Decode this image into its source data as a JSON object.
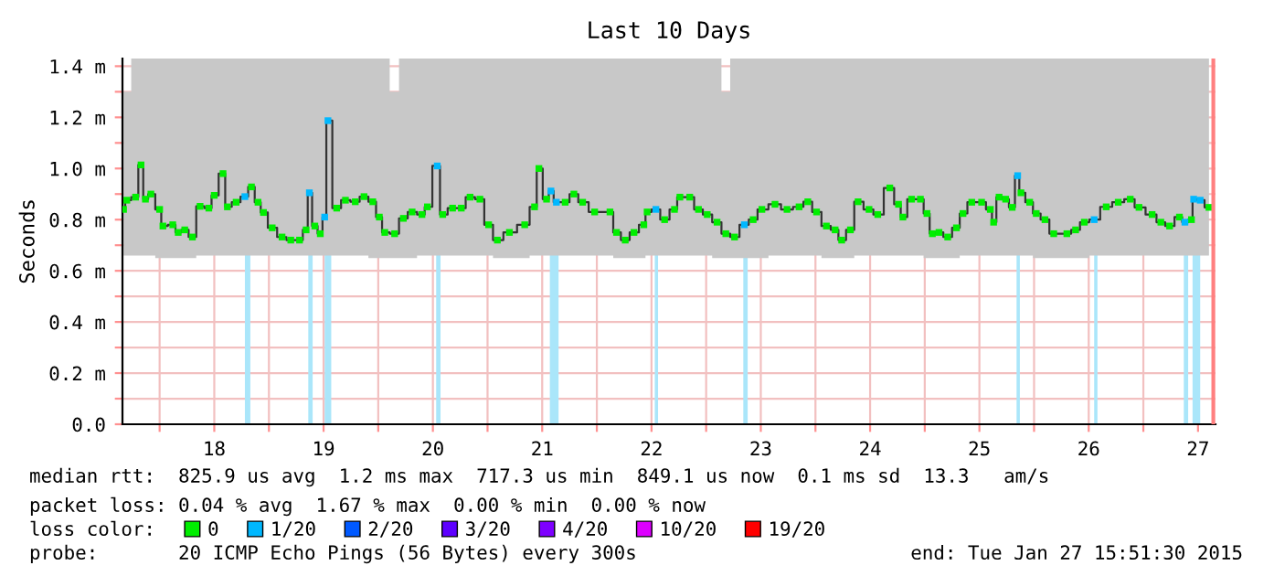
{
  "chart_data": {
    "type": "scatter",
    "title": "Last 10 Days",
    "ylabel": "Seconds",
    "legend_title": "loss color:",
    "xlim": [
      17.66,
      27.66
    ],
    "ylim": [
      0,
      1.43
    ],
    "xticks": [
      {
        "value": 18,
        "label": null
      },
      {
        "value": 18.5,
        "label": "18"
      },
      {
        "value": 19,
        "label": null
      },
      {
        "value": 19.5,
        "label": "19"
      },
      {
        "value": 20,
        "label": null
      },
      {
        "value": 20.5,
        "label": "20"
      },
      {
        "value": 21,
        "label": null
      },
      {
        "value": 21.5,
        "label": "21"
      },
      {
        "value": 22,
        "label": null
      },
      {
        "value": 22.5,
        "label": "22"
      },
      {
        "value": 23,
        "label": null
      },
      {
        "value": 23.5,
        "label": "23"
      },
      {
        "value": 24,
        "label": null
      },
      {
        "value": 24.5,
        "label": "24"
      },
      {
        "value": 25,
        "label": null
      },
      {
        "value": 25.5,
        "label": "25"
      },
      {
        "value": 26,
        "label": null
      },
      {
        "value": 26.5,
        "label": "26"
      },
      {
        "value": 27,
        "label": null
      },
      {
        "value": 27.5,
        "label": "27"
      }
    ],
    "yticks": [
      {
        "value": 0,
        "label": "0.0"
      },
      {
        "value": 0.1,
        "label": null
      },
      {
        "value": 0.2,
        "label": "0.2 m"
      },
      {
        "value": 0.3,
        "label": null
      },
      {
        "value": 0.4,
        "label": "0.4 m"
      },
      {
        "value": 0.5,
        "label": null
      },
      {
        "value": 0.6,
        "label": "0.6 m"
      },
      {
        "value": 0.7,
        "label": null
      },
      {
        "value": 0.8,
        "label": "0.8 m"
      },
      {
        "value": 0.9,
        "label": null
      },
      {
        "value": 1.0,
        "label": "1.0 m"
      },
      {
        "value": 1.1,
        "label": null
      },
      {
        "value": 1.2,
        "label": "1.2 m"
      },
      {
        "value": 1.3,
        "label": null
      },
      {
        "value": 1.4,
        "label": "1.4 m"
      }
    ],
    "grid": true,
    "legend": "bottom",
    "series": [
      {
        "type": "line",
        "color": "#333333",
        "marker": "none",
        "x": [
          17.67,
          17.7,
          17.78,
          17.83,
          17.87,
          17.92,
          18.0,
          18.03,
          18.12,
          18.17,
          18.23,
          18.3,
          18.37,
          18.45,
          18.5,
          18.58,
          18.62,
          18.7,
          18.78,
          18.84,
          18.9,
          18.95,
          19.03,
          19.12,
          19.2,
          19.28,
          19.34,
          19.37,
          19.42,
          19.47,
          19.51,
          19.54,
          19.62,
          19.7,
          19.79,
          19.87,
          19.95,
          20.01,
          20.06,
          20.15,
          20.23,
          20.31,
          20.4,
          20.45,
          20.54,
          20.59,
          20.68,
          20.76,
          20.84,
          20.93,
          21.01,
          21.09,
          21.2,
          21.34,
          21.43,
          21.47,
          21.54,
          21.58,
          21.63,
          21.71,
          21.79,
          21.87,
          21.98,
          22.12,
          22.18,
          22.26,
          22.34,
          22.43,
          22.46,
          22.54,
          22.62,
          22.71,
          22.76,
          22.85,
          22.93,
          23.01,
          23.1,
          23.18,
          23.26,
          23.35,
          23.43,
          23.51,
          23.63,
          23.74,
          23.85,
          23.93,
          24.01,
          24.1,
          24.18,
          24.24,
          24.32,
          24.39,
          24.49,
          24.57,
          24.68,
          24.76,
          24.8,
          24.88,
          24.96,
          25.02,
          25.07,
          25.13,
          25.21,
          25.29,
          25.35,
          25.43,
          25.52,
          25.6,
          25.63,
          25.68,
          25.74,
          25.8,
          25.85,
          25.88,
          25.96,
          26.02,
          26.1,
          26.18,
          26.3,
          26.38,
          26.46,
          26.55,
          26.66,
          26.77,
          26.88,
          26.96,
          27.08,
          27.16,
          27.24,
          27.33,
          27.38,
          27.44,
          27.46,
          27.52,
          27.6
        ],
        "values": [
          0.84,
          0.876,
          0.888,
          1.014,
          0.88,
          0.9,
          0.84,
          0.775,
          0.78,
          0.75,
          0.76,
          0.732,
          0.852,
          0.845,
          0.895,
          0.98,
          0.85,
          0.868,
          0.89,
          0.928,
          0.868,
          0.828,
          0.768,
          0.732,
          0.72,
          0.72,
          0.76,
          0.905,
          0.775,
          0.745,
          0.81,
          1.187,
          0.845,
          0.876,
          0.87,
          0.89,
          0.87,
          0.81,
          0.75,
          0.745,
          0.805,
          0.83,
          0.82,
          0.85,
          1.01,
          0.82,
          0.845,
          0.845,
          0.888,
          0.88,
          0.78,
          0.72,
          0.75,
          0.78,
          0.85,
          1.0,
          0.88,
          0.912,
          0.868,
          0.868,
          0.9,
          0.868,
          0.83,
          0.83,
          0.75,
          0.72,
          0.75,
          0.78,
          0.83,
          0.84,
          0.8,
          0.84,
          0.888,
          0.888,
          0.84,
          0.82,
          0.79,
          0.745,
          0.732,
          0.78,
          0.8,
          0.84,
          0.86,
          0.84,
          0.85,
          0.87,
          0.83,
          0.775,
          0.76,
          0.72,
          0.76,
          0.87,
          0.84,
          0.82,
          0.924,
          0.86,
          0.81,
          0.88,
          0.88,
          0.824,
          0.745,
          0.75,
          0.732,
          0.768,
          0.824,
          0.868,
          0.868,
          0.84,
          0.79,
          0.888,
          0.88,
          0.848,
          0.972,
          0.905,
          0.868,
          0.824,
          0.8,
          0.745,
          0.745,
          0.76,
          0.79,
          0.8,
          0.85,
          0.868,
          0.88,
          0.848,
          0.82,
          0.79,
          0.775,
          0.81,
          0.79,
          0.8,
          0.88,
          0.876,
          0.848
        ],
        "lower": [
          0.66,
          0.66,
          0.66,
          0.66,
          0.66,
          0.66,
          0.65,
          0.65,
          0.65,
          0.65,
          0.65,
          0.65,
          0.66,
          0.66,
          0.66,
          0.66,
          0.66,
          0.66,
          0.66,
          0.66,
          0.66,
          0.66,
          0.66,
          0.66,
          0.66,
          0.66,
          0.66,
          0.66,
          0.66,
          0.66,
          0.66,
          0.66,
          0.66,
          0.66,
          0.66,
          0.66,
          0.65,
          0.65,
          0.65,
          0.65,
          0.65,
          0.65,
          0.66,
          0.66,
          0.66,
          0.66,
          0.66,
          0.66,
          0.66,
          0.66,
          0.66,
          0.65,
          0.65,
          0.65,
          0.66,
          0.66,
          0.66,
          0.66,
          0.66,
          0.66,
          0.66,
          0.66,
          0.66,
          0.66,
          0.65,
          0.65,
          0.65,
          0.65,
          0.66,
          0.66,
          0.66,
          0.66,
          0.66,
          0.66,
          0.66,
          0.66,
          0.65,
          0.65,
          0.65,
          0.65,
          0.65,
          0.65,
          0.66,
          0.66,
          0.66,
          0.66,
          0.66,
          0.65,
          0.65,
          0.65,
          0.65,
          0.66,
          0.66,
          0.66,
          0.66,
          0.66,
          0.66,
          0.66,
          0.66,
          0.65,
          0.65,
          0.65,
          0.65,
          0.65,
          0.66,
          0.66,
          0.66,
          0.66,
          0.66,
          0.66,
          0.66,
          0.66,
          0.66,
          0.66,
          0.66,
          0.65,
          0.65,
          0.65,
          0.65,
          0.65,
          0.65,
          0.66,
          0.66,
          0.66,
          0.66,
          0.66,
          0.66,
          0.66,
          0.66,
          0.66,
          0.66,
          0.66,
          0.66,
          0.66,
          0.66
        ],
        "upper": [
          1.3,
          1.3,
          1.43,
          1.43,
          1.43,
          1.43,
          1.43,
          1.43,
          1.43,
          1.43,
          1.43,
          1.43,
          1.43,
          1.43,
          1.43,
          1.43,
          1.43,
          1.43,
          1.43,
          1.43,
          1.43,
          1.43,
          1.43,
          1.43,
          1.43,
          1.43,
          1.43,
          1.43,
          1.43,
          1.43,
          1.43,
          1.43,
          1.43,
          1.43,
          1.43,
          1.43,
          1.43,
          1.43,
          1.43,
          1.3,
          1.43,
          1.43,
          1.43,
          1.43,
          1.43,
          1.43,
          1.43,
          1.43,
          1.43,
          1.43,
          1.43,
          1.43,
          1.43,
          1.43,
          1.43,
          1.43,
          1.43,
          1.43,
          1.43,
          1.43,
          1.43,
          1.43,
          1.43,
          1.43,
          1.43,
          1.43,
          1.43,
          1.43,
          1.43,
          1.43,
          1.43,
          1.43,
          1.43,
          1.43,
          1.43,
          1.43,
          1.43,
          1.3,
          1.43,
          1.43,
          1.43,
          1.43,
          1.43,
          1.43,
          1.43,
          1.43,
          1.43,
          1.43,
          1.43,
          1.43,
          1.43,
          1.43,
          1.43,
          1.43,
          1.43,
          1.43,
          1.43,
          1.43,
          1.43,
          1.43,
          1.43,
          1.43,
          1.43,
          1.43,
          1.43,
          1.43,
          1.43,
          1.43,
          1.43,
          1.43,
          1.43,
          1.43,
          1.43,
          1.43,
          1.43,
          1.43,
          1.43,
          1.43,
          1.43,
          1.43,
          1.43,
          1.43,
          1.43,
          1.43,
          1.43,
          1.43,
          1.43,
          1.43,
          1.43,
          1.43,
          1.43,
          1.43,
          1.43,
          1.43,
          1.43
        ]
      },
      {
        "name": "0",
        "color": "#00ee00",
        "marker": "square",
        "x": [
          17.67,
          17.7,
          17.78,
          17.83,
          17.87,
          17.92,
          18.0,
          18.03,
          18.12,
          18.17,
          18.23,
          18.3,
          18.37,
          18.45,
          18.5,
          18.58,
          18.62,
          18.7,
          18.84,
          18.9,
          18.95,
          19.03,
          19.12,
          19.2,
          19.28,
          19.34,
          19.42,
          19.47,
          19.62,
          19.7,
          19.79,
          19.87,
          19.95,
          20.01,
          20.06,
          20.15,
          20.23,
          20.31,
          20.4,
          20.45,
          20.59,
          20.68,
          20.76,
          20.84,
          20.93,
          21.01,
          21.09,
          21.2,
          21.34,
          21.43,
          21.47,
          21.54,
          21.71,
          21.79,
          21.87,
          21.98,
          22.12,
          22.18,
          22.26,
          22.34,
          22.43,
          22.46,
          22.62,
          22.71,
          22.76,
          22.85,
          22.93,
          23.01,
          23.1,
          23.18,
          23.26,
          23.43,
          23.51,
          23.63,
          23.74,
          23.85,
          23.93,
          24.01,
          24.1,
          24.18,
          24.24,
          24.32,
          24.39,
          24.49,
          24.57,
          24.68,
          24.76,
          24.8,
          24.88,
          24.96,
          25.02,
          25.07,
          25.13,
          25.21,
          25.29,
          25.35,
          25.43,
          25.52,
          25.6,
          25.63,
          25.68,
          25.74,
          25.8,
          25.88,
          25.96,
          26.02,
          26.1,
          26.18,
          26.3,
          26.38,
          26.46,
          26.66,
          26.77,
          26.88,
          26.96,
          27.08,
          27.16,
          27.24,
          27.33,
          27.44,
          27.6
        ],
        "values": [
          0.84,
          0.876,
          0.888,
          1.014,
          0.88,
          0.9,
          0.84,
          0.775,
          0.78,
          0.75,
          0.76,
          0.732,
          0.852,
          0.845,
          0.895,
          0.98,
          0.85,
          0.868,
          0.928,
          0.868,
          0.828,
          0.768,
          0.732,
          0.72,
          0.72,
          0.76,
          0.775,
          0.745,
          0.845,
          0.876,
          0.87,
          0.89,
          0.87,
          0.81,
          0.75,
          0.745,
          0.805,
          0.83,
          0.82,
          0.85,
          0.82,
          0.845,
          0.845,
          0.888,
          0.88,
          0.78,
          0.72,
          0.75,
          0.78,
          0.85,
          1.0,
          0.88,
          0.868,
          0.9,
          0.868,
          0.83,
          0.83,
          0.75,
          0.72,
          0.75,
          0.78,
          0.83,
          0.8,
          0.84,
          0.888,
          0.888,
          0.84,
          0.82,
          0.79,
          0.745,
          0.732,
          0.8,
          0.84,
          0.86,
          0.84,
          0.85,
          0.87,
          0.83,
          0.775,
          0.76,
          0.72,
          0.76,
          0.87,
          0.84,
          0.82,
          0.924,
          0.86,
          0.81,
          0.88,
          0.88,
          0.824,
          0.745,
          0.75,
          0.732,
          0.768,
          0.824,
          0.868,
          0.868,
          0.84,
          0.79,
          0.888,
          0.88,
          0.848,
          0.905,
          0.868,
          0.824,
          0.8,
          0.745,
          0.745,
          0.76,
          0.79,
          0.85,
          0.868,
          0.88,
          0.848,
          0.82,
          0.79,
          0.775,
          0.81,
          0.8,
          0.848
        ]
      },
      {
        "name": "1/20",
        "color": "#00b8ff",
        "marker": "square",
        "x": [
          18.78,
          19.37,
          19.51,
          19.54,
          20.54,
          21.58,
          21.63,
          22.54,
          23.35,
          25.85,
          26.55,
          27.38,
          27.46,
          27.52
        ],
        "values": [
          0.89,
          0.905,
          0.81,
          1.187,
          1.01,
          0.912,
          0.868,
          0.84,
          0.78,
          0.972,
          0.8,
          0.79,
          0.88,
          0.876
        ]
      },
      {
        "name": "2/20",
        "color": "#0059ff"
      },
      {
        "name": "3/20",
        "color": "#5e00ff"
      },
      {
        "name": "4/20",
        "color": "#7e00ff"
      },
      {
        "name": "10/20",
        "color": "#dd00ff"
      },
      {
        "name": "19/20",
        "color": "#ff0000"
      }
    ],
    "bands": [
      {
        "axis": "x",
        "from": 18.78,
        "to": 18.83,
        "color": "#aae6fa"
      },
      {
        "axis": "x",
        "from": 19.36,
        "to": 19.4,
        "color": "#aae6fa"
      },
      {
        "axis": "x",
        "from": 19.51,
        "to": 19.57,
        "color": "#aae6fa"
      },
      {
        "axis": "x",
        "from": 20.53,
        "to": 20.57,
        "color": "#aae6fa"
      },
      {
        "axis": "x",
        "from": 21.57,
        "to": 21.65,
        "color": "#aae6fa"
      },
      {
        "axis": "x",
        "from": 22.53,
        "to": 22.56,
        "color": "#aae6fa"
      },
      {
        "axis": "x",
        "from": 23.34,
        "to": 23.38,
        "color": "#aae6fa"
      },
      {
        "axis": "x",
        "from": 25.84,
        "to": 25.87,
        "color": "#aae6fa"
      },
      {
        "axis": "x",
        "from": 26.55,
        "to": 26.58,
        "color": "#aae6fa"
      },
      {
        "axis": "x",
        "from": 27.37,
        "to": 27.41,
        "color": "#aae6fa"
      },
      {
        "axis": "x",
        "from": 27.45,
        "to": 27.52,
        "color": "#aae6fa"
      }
    ],
    "ref_lines": [
      {
        "axis": "x",
        "value": 27.64,
        "color": "#ff8080",
        "line_style": "solid"
      }
    ],
    "annotations": [
      "median rtt:  825.9 us avg  1.2 ms max  717.3 us min  849.1 us now  0.1 ms sd  13.3   am/s",
      "packet loss: 0.04 % avg  1.67 % max  0.00 % min  0.00 % now",
      "probe:       20 ICMP Echo Pings (56 Bytes) every 300s",
      "end: Tue Jan 27 15:51:30 2015"
    ]
  }
}
